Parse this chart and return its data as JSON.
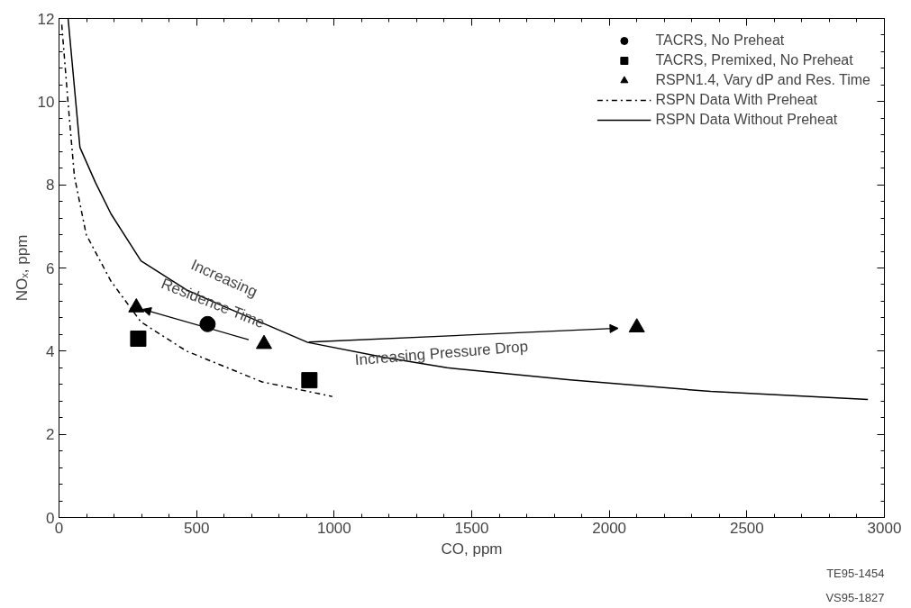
{
  "chart_data": {
    "type": "scatter",
    "xlabel": "CO, ppm",
    "ylabel": "NOₓ, ppm",
    "xlim": [
      0,
      3000
    ],
    "xticks": [
      0,
      500,
      1000,
      1500,
      2000,
      2500,
      3000
    ],
    "ylim": [
      0,
      12
    ],
    "yticks": [
      0,
      2,
      4,
      6,
      8,
      10,
      12
    ],
    "grid": false,
    "legend": "top right",
    "series": [
      {
        "name": "TACRS, No Preheat",
        "marker": "circle",
        "color": "#000000",
        "x": [
          540
        ],
        "values": [
          4.65
        ]
      },
      {
        "name": "TACRS, Premixed, No Preheat",
        "marker": "square",
        "color": "#000000",
        "x": [
          288,
          910
        ],
        "values": [
          4.3,
          3.3
        ]
      },
      {
        "name": "RSPN1.4, Vary dP and Res. Time",
        "marker": "triangle",
        "color": "#000000",
        "x": [
          281,
          745,
          2100
        ],
        "values": [
          5.05,
          4.17,
          4.57
        ]
      },
      {
        "name": "RSPN Data With Preheat",
        "type": "line",
        "line_style": "dashed",
        "color": "#000000",
        "x": [
          10,
          33,
          56,
          99,
          189,
          298,
          464,
          738,
          993
        ],
        "values": [
          11.85,
          9.96,
          8.2,
          6.8,
          5.68,
          4.7,
          4.0,
          3.26,
          2.91
        ]
      },
      {
        "name": "RSPN Data Without Preheat",
        "type": "line",
        "line_style": "solid",
        "color": "#000000",
        "x": [
          33,
          76,
          132,
          189,
          298,
          464,
          629,
          904,
          1182,
          1411,
          1858,
          2368,
          2940
        ],
        "values": [
          12,
          8.9,
          8.06,
          7.3,
          6.17,
          5.47,
          4.99,
          4.21,
          3.85,
          3.6,
          3.31,
          3.03,
          2.84
        ]
      }
    ],
    "annotations": [
      "Increasing",
      "Residence Time",
      "Increasing Pressure Drop",
      "TE95-1454",
      "VS95-1827"
    ]
  }
}
